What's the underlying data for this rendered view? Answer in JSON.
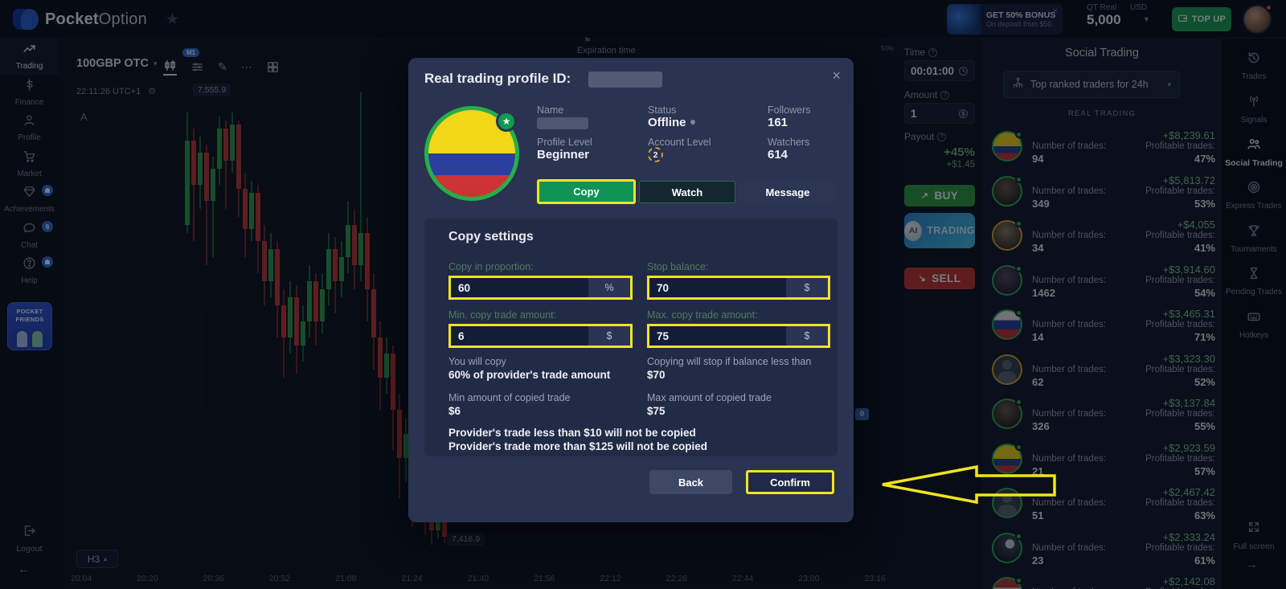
{
  "topbar": {
    "brand_a": "Pocket",
    "brand_b": "Option",
    "bonus_title": "GET 50% BONUS",
    "bonus_sub": "On deposit from $50",
    "bonus_close": "×",
    "account_type": "QT Real",
    "currency": "USD",
    "balance": "5,000",
    "top_up": "TOP UP"
  },
  "sidebar": {
    "items": [
      {
        "label": "Trading",
        "icon": "trading",
        "active": true
      },
      {
        "label": "Finance",
        "icon": "finance"
      },
      {
        "label": "Profile",
        "icon": "profile"
      },
      {
        "label": "Market",
        "icon": "market"
      },
      {
        "label": "Achievements",
        "icon": "achievements",
        "badge": "bell"
      },
      {
        "label": "Chat",
        "icon": "chat",
        "badge": "6"
      },
      {
        "label": "Help",
        "icon": "help",
        "badge": "bell"
      }
    ],
    "pocket_friends_line1": "POCKET",
    "pocket_friends_line2": "FRIENDS",
    "logout": "Logout",
    "collapse": "←"
  },
  "chart": {
    "symbol": "100GBP OTC",
    "symbol_caret": "▾",
    "timeframe_badge": "M1",
    "clock": "22:11:26 UTC+1",
    "gear": "⚙",
    "price_top": "7,555.9",
    "price_bottom": "7,416.9",
    "marker": "A",
    "expiration_label": "Expiration time",
    "expiration_flag": "⚑",
    "interval": "H3",
    "interval_caret": "▴",
    "sentiment": "50%",
    "zero_badge": "0",
    "pen_icon": "✎",
    "more_icon": "⋯",
    "time_axis": [
      "20:04",
      "20:20",
      "20:36",
      "20:52",
      "21:08",
      "21:24",
      "21:40",
      "21:56",
      "22:12",
      "22:28",
      "22:44",
      "23:00",
      "23:16"
    ]
  },
  "modal": {
    "title": "Real trading profile ID:",
    "close": "×",
    "profile": {
      "name_label": "Name",
      "status_label": "Status",
      "status_value": "Offline",
      "followers_label": "Followers",
      "followers_value": "161",
      "profile_level_label": "Profile Level",
      "profile_level_value": "Beginner",
      "account_level_label": "Account Level",
      "account_level_value": "2",
      "watchers_label": "Watchers",
      "watchers_value": "614",
      "star": "★"
    },
    "actions": {
      "copy": "Copy",
      "watch": "Watch",
      "message": "Message"
    },
    "copy_settings": {
      "heading": "Copy settings",
      "fields": [
        {
          "label": "Copy in proportion:",
          "value": "60",
          "unit": "%"
        },
        {
          "label": "Stop balance:",
          "value": "70",
          "unit": "$"
        },
        {
          "label": "Min. copy trade amount:",
          "value": "6",
          "unit": "$"
        },
        {
          "label": "Max. copy trade amount:",
          "value": "75",
          "unit": "$"
        }
      ],
      "notes": [
        {
          "label": "You will copy",
          "value": "60% of provider's trade amount"
        },
        {
          "label": "Copying will stop if balance less than",
          "value": "$70"
        },
        {
          "label": "Min amount of copied trade",
          "value": "$6"
        },
        {
          "label": "Max amount of copied trade",
          "value": "$75"
        }
      ],
      "warning1": "Provider's trade less than $10 will not be copied",
      "warning2": "Provider's trade more than $125 will not be copied"
    },
    "footer": {
      "back": "Back",
      "confirm": "Confirm"
    }
  },
  "trade_panel": {
    "time_label": "Time",
    "time_value": "00:01:00",
    "amount_label": "Amount",
    "amount_value": "1",
    "payout_label": "Payout",
    "payout_percent": "+45%",
    "payout_amount": "+$1.45",
    "buy": "BUY",
    "buy_arrow": "↗",
    "ai_logo": "AI",
    "ai_label": "TRADING",
    "sell": "SELL",
    "sell_arrow": "↘"
  },
  "social": {
    "title": "Social Trading",
    "filter": "Top ranked traders for 24h",
    "filter_caret": "▾",
    "section": "REAL TRADING",
    "trades_label": "Number of trades:",
    "profitable_label": "Profitable trades:",
    "traders": [
      {
        "trades": "94",
        "profit": "+$8,239.61",
        "profitable": "47%",
        "avatar": "colombia"
      },
      {
        "trades": "349",
        "profit": "+$5,813.72",
        "profitable": "53%",
        "avatar": "photo-a"
      },
      {
        "trades": "34",
        "profit": "+$4,055",
        "profitable": "41%",
        "avatar": "photo-b"
      },
      {
        "trades": "1462",
        "profit": "+$3,914.60",
        "profitable": "54%",
        "avatar": "photo-c"
      },
      {
        "trades": "14",
        "profit": "+$3,465.31",
        "profitable": "71%",
        "avatar": "russia"
      },
      {
        "trades": "62",
        "profit": "+$3,323.30",
        "profitable": "52%",
        "avatar": "sil-a"
      },
      {
        "trades": "326",
        "profit": "+$3,137.84",
        "profitable": "55%",
        "avatar": "photo-d"
      },
      {
        "trades": "21",
        "profit": "+$2,923.59",
        "profitable": "57%",
        "avatar": "colombia"
      },
      {
        "trades": "51",
        "profit": "+$2,467.42",
        "profitable": "63%",
        "avatar": "sil-b"
      },
      {
        "trades": "23",
        "profit": "+$2,333.24",
        "profitable": "61%",
        "avatar": "jet"
      },
      {
        "trades": "",
        "profit": "+$2,142.08",
        "profitable": "",
        "avatar": "iraq"
      }
    ]
  },
  "rail": {
    "items": [
      {
        "label": "Trades",
        "icon": "trades"
      },
      {
        "label": "Signals",
        "icon": "signals"
      },
      {
        "label": "Social Trading",
        "icon": "social",
        "active": true
      },
      {
        "label": "Express Trades",
        "icon": "express"
      },
      {
        "label": "Tournaments",
        "icon": "tournaments"
      },
      {
        "label": "Pending Trades",
        "icon": "pending"
      },
      {
        "label": "Hotkeys",
        "icon": "hotkeys"
      }
    ],
    "full_screen": "Full screen",
    "next_arrow": "→"
  },
  "colors": {
    "annotation_yellow": "#f1e41f",
    "buy_green": "#2f9e41",
    "sell_red": "#c53632",
    "profit_green": "#84c495"
  }
}
